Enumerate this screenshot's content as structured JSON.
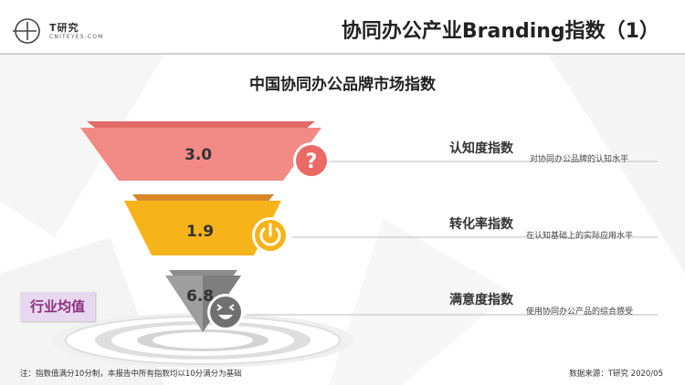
{
  "header": {
    "logo_cn": "T研究",
    "logo_en": "CNITEYES.COM",
    "title": "协同办公产业Branding指数（1）"
  },
  "section_title": "中国协同办公品牌市场指数",
  "funnel": [
    {
      "value": "3.0",
      "title": "认知度指数",
      "desc": "对协同办公品牌的认知水平",
      "icon": "question-icon",
      "color": "#f28a85"
    },
    {
      "value": "1.9",
      "title": "转化率指数",
      "desc": "在认知基础上的实际应用水平",
      "icon": "power-icon",
      "color": "#f7b31a"
    },
    {
      "value": "6.8",
      "title": "满意度指数",
      "desc": "使用协同办公产品的综合感受",
      "icon": "laughing-face-icon",
      "color": "#9e9e9e"
    }
  ],
  "badge": "行业均值",
  "footnote": "注：指数值满分10分制，本报告中所有指数均以10分满分为基础",
  "source": "数据来源：T研究 2020/05"
}
